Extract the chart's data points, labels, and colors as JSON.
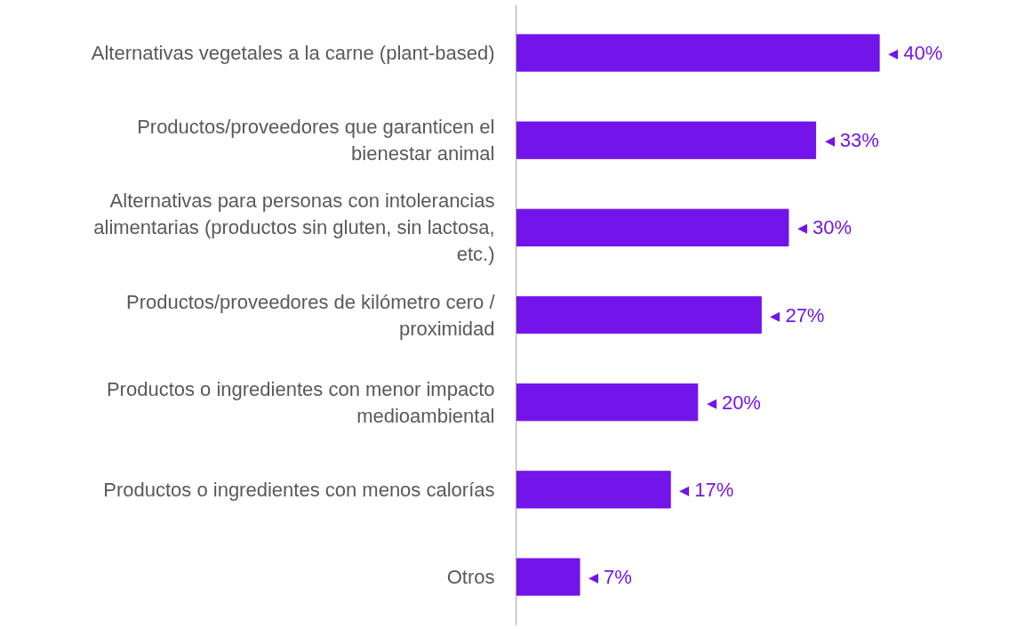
{
  "chart_data": {
    "type": "bar",
    "orientation": "horizontal",
    "categories": [
      "Alternativas vegetales a la carne (plant-based)",
      "Productos/proveedores que garanticen el bienestar animal",
      "Alternativas para personas con intolerancias alimentarias (productos sin gluten, sin lactosa, etc.)",
      "Productos/proveedores de kilómetro cero / proximidad",
      "Productos o ingredientes con menor impacto medioambiental",
      "Productos o ingredientes con menos calorías",
      "Otros"
    ],
    "values": [
      40,
      33,
      30,
      27,
      20,
      17,
      7
    ],
    "value_labels": [
      "◂ 40%",
      "◂ 33%",
      "◂ 30%",
      "◂ 27%",
      "◂ 20%",
      "◂ 17%",
      "◂ 7%"
    ],
    "color": "#7214ea",
    "grid": false,
    "tick_labels": "y"
  }
}
